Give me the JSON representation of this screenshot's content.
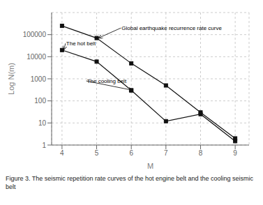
{
  "chart_data": {
    "type": "line",
    "title": "Figure 3. The seismic repetition rate curves of the hot engine belt and the cooling seismic belt",
    "xlabel": "M",
    "ylabel": "Log N(m)",
    "log": "y",
    "xlim": [
      3.7,
      9.4
    ],
    "ylim": [
      1,
      1000000
    ],
    "xticks": [
      4,
      5,
      6,
      7,
      8,
      9
    ],
    "yticks": [
      1,
      10,
      100,
      1000,
      10000,
      100000
    ],
    "grid": true,
    "series": [
      {
        "x": [
          4,
          5,
          6,
          7,
          8,
          9
        ],
        "values": [
          250000,
          70000,
          5000,
          500,
          30,
          2
        ],
        "color": "#111111",
        "marker": "square",
        "line_style": "solid"
      },
      {
        "x": [
          4,
          5,
          6
        ],
        "values": [
          20000,
          6000,
          300
        ],
        "color": "#111111",
        "marker": "square",
        "line_style": "solid"
      },
      {
        "x": [
          6,
          7,
          8,
          9
        ],
        "values": [
          300,
          12,
          25,
          1.5
        ],
        "color": "#111111",
        "marker": "square",
        "line_style": "solid"
      }
    ],
    "annotations": [
      {
        "text": "Global earthquake recurrence rate curve",
        "x": 5.05,
        "y": 70000,
        "text_x": 5.7,
        "text_y": 200000
      },
      {
        "text": "The hot belt",
        "x": 4.05,
        "y": 20000,
        "text_x": 4.1,
        "text_y": 40000
      },
      {
        "text": "The cooling belt",
        "x": 6.05,
        "y": 300,
        "text_x": 4.7,
        "text_y": 800
      }
    ]
  }
}
